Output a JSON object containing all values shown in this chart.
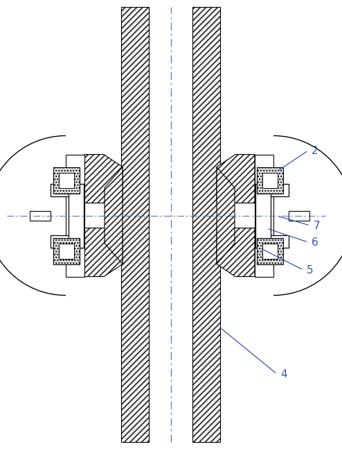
{
  "bg_color": "#ffffff",
  "line_color": "#000000",
  "cc": "#5577bb",
  "lc2": "#5577bb",
  "figsize": [
    4.94,
    6.47
  ],
  "dpi": 100
}
